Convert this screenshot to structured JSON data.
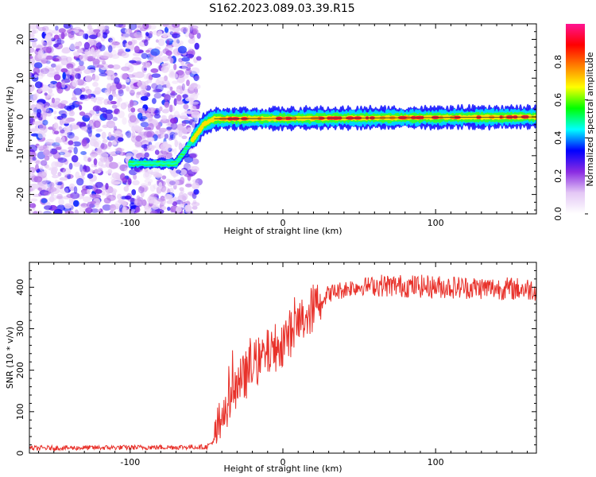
{
  "title": "S162.2023.089.03.39.R15",
  "chart_data": [
    {
      "type": "heatmap",
      "title": "S162.2023.089.03.39.R15",
      "xlabel": "Height of straight line (km)",
      "ylabel": "Frequency (Hz)",
      "xlim": [
        -166,
        166
      ],
      "ylim": [
        -25,
        24
      ],
      "xticks": [
        -100,
        0,
        100
      ],
      "yticks": [
        -20,
        -10,
        0,
        10,
        20
      ],
      "grid": false,
      "ridge": {
        "description_points": [
          {
            "x": -166,
            "y": -12
          },
          {
            "x": -70,
            "y": -12
          },
          {
            "x": -52,
            "y": -2
          },
          {
            "x": -45,
            "y": -0.5
          },
          {
            "x": 166,
            "y": 0
          }
        ]
      },
      "noise_region": {
        "x_min": -166,
        "x_max": -55,
        "y_min": -25,
        "y_max": 24
      },
      "colorbar": {
        "label": "Normalized spectral amplitude",
        "range": [
          0,
          1
        ],
        "ticks": [
          0.0,
          0.2,
          0.4,
          0.6,
          0.8
        ],
        "tick_labels": [
          "0.0",
          "0.2",
          "0.4",
          "0.6",
          "0.8"
        ],
        "colors": [
          "#ffffff",
          "#e4c8f5",
          "#8a2be2",
          "#0000ff",
          "#00ffff",
          "#00ff00",
          "#ffff00",
          "#ff8000",
          "#ff0000",
          "#ff1493"
        ]
      }
    },
    {
      "type": "line",
      "xlabel": "Height of straight line (km)",
      "ylabel": "SNR (10 * v/v)",
      "xlim": [
        -166,
        166
      ],
      "ylim": [
        0,
        460
      ],
      "xticks": [
        -100,
        0,
        100
      ],
      "yticks": [
        0,
        100,
        200,
        300,
        400
      ],
      "grid": false,
      "series": [
        {
          "color": "#e8312a",
          "envelope": [
            {
              "x": -166,
              "y": 12
            },
            {
              "x": -50,
              "y": 15
            },
            {
              "x": -45,
              "y": 30
            },
            {
              "x": -40,
              "y": 90
            },
            {
              "x": -30,
              "y": 160
            },
            {
              "x": -20,
              "y": 210
            },
            {
              "x": -10,
              "y": 240
            },
            {
              "x": 0,
              "y": 270
            },
            {
              "x": 10,
              "y": 310
            },
            {
              "x": 20,
              "y": 350
            },
            {
              "x": 30,
              "y": 385
            },
            {
              "x": 45,
              "y": 400
            },
            {
              "x": 60,
              "y": 405
            },
            {
              "x": 166,
              "y": 395
            }
          ]
        }
      ]
    }
  ]
}
